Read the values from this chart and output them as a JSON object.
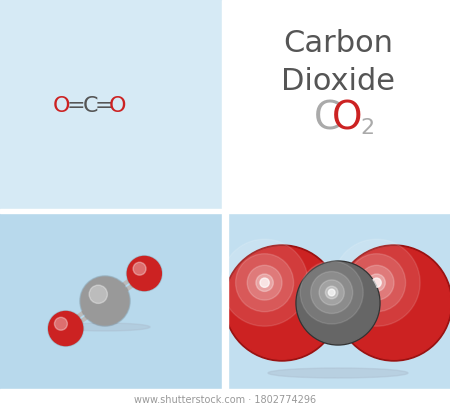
{
  "bg_top_left": "#d6eaf5",
  "bg_top_right": "#ffffff",
  "bg_bottom_left": "#b8d9ec",
  "bg_bottom_right": "#c2dff0",
  "title_line1": "Carbon",
  "title_line2": "Dioxide",
  "title_color": "#555555",
  "formula_C_color": "#aaaaaa",
  "formula_O_color": "#cc2222",
  "formula_2_color": "#aaaaaa",
  "structural_O_color": "#cc2222",
  "structural_C_color": "#555555",
  "stick_color": "#bbbbbb",
  "carbon_ball_color": "#999999",
  "oxygen_ball_color": "#cc2222",
  "carbon_space_color": "#666666",
  "oxygen_space_color": "#cc2222",
  "bottom_text": "www.shutterstock.com · 1802774296",
  "bottom_text_color": "#999999",
  "divider_color": "#ffffff"
}
